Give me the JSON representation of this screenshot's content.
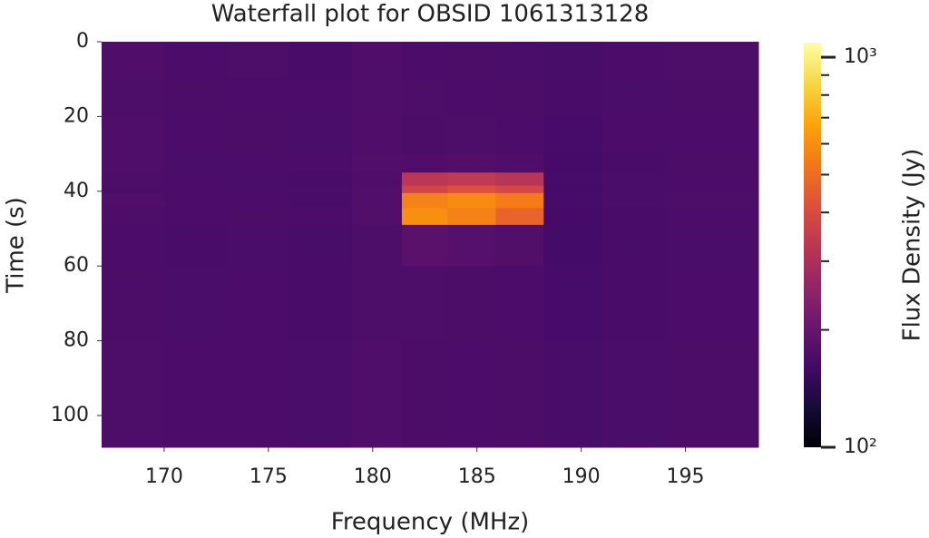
{
  "chart_data": {
    "type": "heatmap",
    "title": "Waterfall plot for OBSID 1061313128",
    "x_label": "Frequency (MHz)",
    "y_label": "Time (s)",
    "colorbar_label": "Flux Density (Jy)",
    "colormap": "inferno",
    "x_edges": [
      167,
      170,
      173,
      176,
      179,
      181.4,
      183.6,
      185.9,
      188.2,
      191,
      194,
      198.5
    ],
    "y_edges": [
      0,
      10,
      20,
      30,
      35,
      38.5,
      40.5,
      44.5,
      49,
      60,
      80,
      108.5
    ],
    "values": [
      [
        175,
        170,
        172,
        168,
        174,
        170,
        171,
        169,
        167,
        170,
        172
      ],
      [
        172,
        171,
        170,
        170,
        173,
        172,
        170,
        171,
        168,
        169,
        171
      ],
      [
        174,
        170,
        171,
        169,
        175,
        171,
        172,
        170,
        166,
        170,
        170
      ],
      [
        173,
        169,
        170,
        170,
        176,
        175,
        176,
        174,
        165,
        168,
        171
      ],
      [
        172,
        170,
        169,
        168,
        175,
        330,
        340,
        320,
        166,
        169,
        170
      ],
      [
        171,
        171,
        170,
        169,
        176,
        380,
        420,
        390,
        165,
        170,
        171
      ],
      [
        173,
        170,
        170,
        168,
        177,
        560,
        590,
        540,
        166,
        169,
        172
      ],
      [
        172,
        170,
        171,
        170,
        176,
        600,
        560,
        470,
        165,
        168,
        170
      ],
      [
        170,
        168,
        169,
        167,
        172,
        185,
        180,
        176,
        164,
        167,
        169
      ],
      [
        171,
        169,
        170,
        168,
        172,
        172,
        171,
        170,
        166,
        168,
        170
      ],
      [
        172,
        170,
        170,
        169,
        173,
        171,
        170,
        171,
        167,
        169,
        171
      ]
    ],
    "xlim": [
      167,
      198.5
    ],
    "ylim": [
      0,
      108.5
    ],
    "y_inverted": true,
    "xticks": [
      170,
      175,
      180,
      185,
      190,
      195
    ],
    "yticks": [
      0,
      20,
      40,
      60,
      80,
      100
    ],
    "clim": [
      100,
      1090
    ],
    "color_log_scale": true,
    "cticks": [
      {
        "value": 100,
        "label": "10²"
      },
      {
        "value": 1000,
        "label": "10³"
      }
    ],
    "cminor_ticks": [
      200,
      300,
      400,
      500,
      600,
      700,
      800,
      900
    ]
  }
}
